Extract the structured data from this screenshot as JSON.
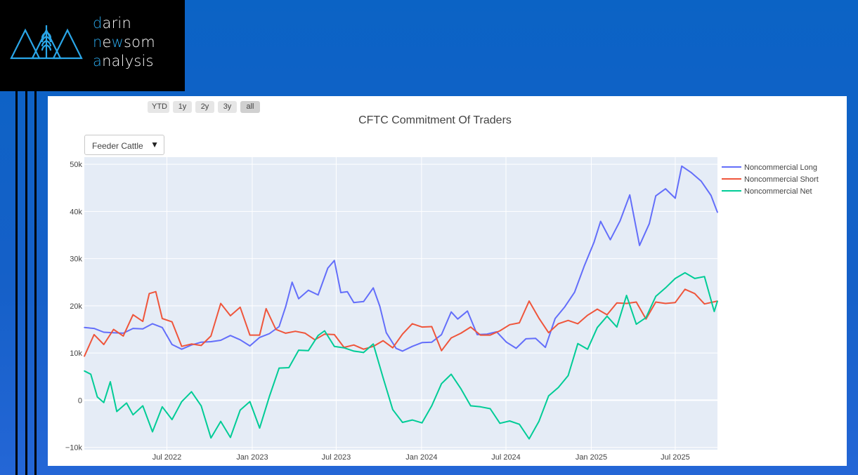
{
  "brand": {
    "line1_first": "d",
    "line1_rest": "arin",
    "line2_first": "n",
    "line2_mid": "e",
    "line2_acc": "w",
    "line2_rest": "som",
    "line3_first": "a",
    "line3_rest": "nalysis",
    "logo_icon": "mountain-wheat-icon",
    "accent_color": "#2aa6e8"
  },
  "range_selector": {
    "buttons": [
      {
        "label": "YTD"
      },
      {
        "label": "1y"
      },
      {
        "label": "2y"
      },
      {
        "label": "3y"
      },
      {
        "label": "all"
      }
    ],
    "active": "all"
  },
  "dropdown": {
    "selected": "Feeder Cattle",
    "arrow_icon": "triangle-down-icon"
  },
  "chart_data": {
    "type": "line",
    "title": "CFTC Commitment Of Traders",
    "xlabel": "",
    "ylabel": "",
    "x_start": "2022-01-04",
    "x_end": "2025-09-30",
    "xlim": [
      "2022-01-04",
      "2025-09-30"
    ],
    "ylim": [
      -10500,
      51500
    ],
    "x_ticks": [
      {
        "date": "2022-07-01",
        "label": "Jul 2022"
      },
      {
        "date": "2023-01-01",
        "label": "Jan 2023"
      },
      {
        "date": "2023-07-01",
        "label": "Jul 2023"
      },
      {
        "date": "2024-01-01",
        "label": "Jan 2024"
      },
      {
        "date": "2024-07-01",
        "label": "Jul 2024"
      },
      {
        "date": "2025-01-01",
        "label": "Jan 2025"
      },
      {
        "date": "2025-07-01",
        "label": "Jul 2025"
      }
    ],
    "y_ticks": [
      {
        "value": -10000,
        "label": "−10k"
      },
      {
        "value": 0,
        "label": "0"
      },
      {
        "value": 10000,
        "label": "10k"
      },
      {
        "value": 20000,
        "label": "20k"
      },
      {
        "value": 30000,
        "label": "30k"
      },
      {
        "value": 40000,
        "label": "40k"
      },
      {
        "value": 50000,
        "label": "50k"
      }
    ],
    "grid": true,
    "legend_position": "top-right",
    "series": [
      {
        "name": "Noncommercial Long",
        "color": "#636efa",
        "values": [
          [
            "2022-01-04",
            15400
          ],
          [
            "2022-01-25",
            15200
          ],
          [
            "2022-02-15",
            14400
          ],
          [
            "2022-03-08",
            14300
          ],
          [
            "2022-03-29",
            14200
          ],
          [
            "2022-04-19",
            15200
          ],
          [
            "2022-05-10",
            15100
          ],
          [
            "2022-05-31",
            16200
          ],
          [
            "2022-06-21",
            15400
          ],
          [
            "2022-07-12",
            11800
          ],
          [
            "2022-08-02",
            10800
          ],
          [
            "2022-08-23",
            11700
          ],
          [
            "2022-09-13",
            12300
          ],
          [
            "2022-10-04",
            12400
          ],
          [
            "2022-10-25",
            12700
          ],
          [
            "2022-11-15",
            13700
          ],
          [
            "2022-12-06",
            12800
          ],
          [
            "2022-12-27",
            11500
          ],
          [
            "2023-01-17",
            13300
          ],
          [
            "2023-02-07",
            14100
          ],
          [
            "2023-02-28",
            15600
          ],
          [
            "2023-03-14",
            19800
          ],
          [
            "2023-03-28",
            25000
          ],
          [
            "2023-04-11",
            21500
          ],
          [
            "2023-05-02",
            23300
          ],
          [
            "2023-05-23",
            22300
          ],
          [
            "2023-06-13",
            28000
          ],
          [
            "2023-06-27",
            29600
          ],
          [
            "2023-07-11",
            22800
          ],
          [
            "2023-07-25",
            23000
          ],
          [
            "2023-08-08",
            20700
          ],
          [
            "2023-08-29",
            20900
          ],
          [
            "2023-09-19",
            23800
          ],
          [
            "2023-10-03",
            19900
          ],
          [
            "2023-10-17",
            14300
          ],
          [
            "2023-11-07",
            11000
          ],
          [
            "2023-11-21",
            10400
          ],
          [
            "2023-12-12",
            11400
          ],
          [
            "2024-01-02",
            12200
          ],
          [
            "2024-01-23",
            12300
          ],
          [
            "2024-02-13",
            13900
          ],
          [
            "2024-03-05",
            18700
          ],
          [
            "2024-03-19",
            17200
          ],
          [
            "2024-04-09",
            18900
          ],
          [
            "2024-04-30",
            13900
          ],
          [
            "2024-05-21",
            14000
          ],
          [
            "2024-06-11",
            14500
          ],
          [
            "2024-07-02",
            12300
          ],
          [
            "2024-07-23",
            11000
          ],
          [
            "2024-08-13",
            13000
          ],
          [
            "2024-09-03",
            13100
          ],
          [
            "2024-09-24",
            11200
          ],
          [
            "2024-10-15",
            17300
          ],
          [
            "2024-11-05",
            19800
          ],
          [
            "2024-11-26",
            22900
          ],
          [
            "2024-12-17",
            28500
          ],
          [
            "2025-01-07",
            33500
          ],
          [
            "2025-01-21",
            37900
          ],
          [
            "2025-02-11",
            34000
          ],
          [
            "2025-03-04",
            38000
          ],
          [
            "2025-03-25",
            43500
          ],
          [
            "2025-04-15",
            32800
          ],
          [
            "2025-05-06",
            37400
          ],
          [
            "2025-05-20",
            43300
          ],
          [
            "2025-06-10",
            44800
          ],
          [
            "2025-07-01",
            42800
          ],
          [
            "2025-07-15",
            49600
          ],
          [
            "2025-08-05",
            48200
          ],
          [
            "2025-08-26",
            46400
          ],
          [
            "2025-09-16",
            43400
          ],
          [
            "2025-09-30",
            39800
          ]
        ]
      },
      {
        "name": "Noncommercial Short",
        "color": "#ef553b",
        "values": [
          [
            "2022-01-04",
            9300
          ],
          [
            "2022-01-25",
            13900
          ],
          [
            "2022-02-15",
            11800
          ],
          [
            "2022-03-08",
            15000
          ],
          [
            "2022-03-29",
            13600
          ],
          [
            "2022-04-19",
            18100
          ],
          [
            "2022-05-10",
            16700
          ],
          [
            "2022-05-24",
            22600
          ],
          [
            "2022-06-07",
            23000
          ],
          [
            "2022-06-21",
            17300
          ],
          [
            "2022-07-12",
            16600
          ],
          [
            "2022-08-02",
            11400
          ],
          [
            "2022-08-23",
            11900
          ],
          [
            "2022-09-13",
            11600
          ],
          [
            "2022-10-04",
            13600
          ],
          [
            "2022-10-25",
            20500
          ],
          [
            "2022-11-15",
            17900
          ],
          [
            "2022-12-06",
            19700
          ],
          [
            "2022-12-27",
            13800
          ],
          [
            "2023-01-17",
            13800
          ],
          [
            "2023-01-31",
            19400
          ],
          [
            "2023-02-21",
            15000
          ],
          [
            "2023-03-14",
            14200
          ],
          [
            "2023-04-04",
            14600
          ],
          [
            "2023-04-25",
            14200
          ],
          [
            "2023-05-16",
            12800
          ],
          [
            "2023-06-06",
            14000
          ],
          [
            "2023-06-27",
            13900
          ],
          [
            "2023-07-18",
            11200
          ],
          [
            "2023-08-08",
            11700
          ],
          [
            "2023-08-29",
            10800
          ],
          [
            "2023-09-19",
            11400
          ],
          [
            "2023-10-10",
            12600
          ],
          [
            "2023-10-31",
            11100
          ],
          [
            "2023-11-21",
            14000
          ],
          [
            "2023-12-12",
            16200
          ],
          [
            "2024-01-02",
            15500
          ],
          [
            "2024-01-23",
            15600
          ],
          [
            "2024-02-13",
            10500
          ],
          [
            "2024-03-05",
            13200
          ],
          [
            "2024-03-26",
            14200
          ],
          [
            "2024-04-16",
            15500
          ],
          [
            "2024-05-07",
            13800
          ],
          [
            "2024-05-28",
            13800
          ],
          [
            "2024-06-18",
            14700
          ],
          [
            "2024-07-09",
            16000
          ],
          [
            "2024-07-30",
            16400
          ],
          [
            "2024-08-20",
            21000
          ],
          [
            "2024-09-10",
            17400
          ],
          [
            "2024-10-01",
            14300
          ],
          [
            "2024-10-22",
            16200
          ],
          [
            "2024-11-12",
            16900
          ],
          [
            "2024-12-03",
            16200
          ],
          [
            "2024-12-24",
            18000
          ],
          [
            "2025-01-14",
            19300
          ],
          [
            "2025-02-04",
            18100
          ],
          [
            "2025-02-25",
            20600
          ],
          [
            "2025-03-18",
            20500
          ],
          [
            "2025-04-08",
            20800
          ],
          [
            "2025-04-29",
            17200
          ],
          [
            "2025-05-20",
            20800
          ],
          [
            "2025-06-10",
            20500
          ],
          [
            "2025-07-01",
            20700
          ],
          [
            "2025-07-22",
            23500
          ],
          [
            "2025-08-12",
            22600
          ],
          [
            "2025-09-02",
            20400
          ],
          [
            "2025-09-30",
            21000
          ]
        ]
      },
      {
        "name": "Noncommercial Net",
        "color": "#00cc96",
        "values": [
          [
            "2022-01-04",
            6200
          ],
          [
            "2022-01-18",
            5500
          ],
          [
            "2022-02-01",
            700
          ],
          [
            "2022-02-15",
            -500
          ],
          [
            "2022-03-01",
            3900
          ],
          [
            "2022-03-15",
            -2400
          ],
          [
            "2022-04-05",
            -600
          ],
          [
            "2022-04-19",
            -3100
          ],
          [
            "2022-05-10",
            -1200
          ],
          [
            "2022-05-31",
            -6700
          ],
          [
            "2022-06-21",
            -1400
          ],
          [
            "2022-07-12",
            -4100
          ],
          [
            "2022-08-02",
            -300
          ],
          [
            "2022-08-23",
            1800
          ],
          [
            "2022-09-13",
            -1200
          ],
          [
            "2022-10-04",
            -8000
          ],
          [
            "2022-10-25",
            -4500
          ],
          [
            "2022-11-15",
            -7900
          ],
          [
            "2022-12-06",
            -2100
          ],
          [
            "2022-12-27",
            -300
          ],
          [
            "2023-01-17",
            -5900
          ],
          [
            "2023-02-07",
            800
          ],
          [
            "2023-02-28",
            6800
          ],
          [
            "2023-03-21",
            6900
          ],
          [
            "2023-04-11",
            10600
          ],
          [
            "2023-05-02",
            10500
          ],
          [
            "2023-05-23",
            13700
          ],
          [
            "2023-06-06",
            14700
          ],
          [
            "2023-06-27",
            11400
          ],
          [
            "2023-07-18",
            11100
          ],
          [
            "2023-08-08",
            10400
          ],
          [
            "2023-08-29",
            10100
          ],
          [
            "2023-09-19",
            11900
          ],
          [
            "2023-10-10",
            4800
          ],
          [
            "2023-10-31",
            -2000
          ],
          [
            "2023-11-21",
            -4700
          ],
          [
            "2023-12-12",
            -4200
          ],
          [
            "2024-01-02",
            -4800
          ],
          [
            "2024-01-23",
            -1200
          ],
          [
            "2024-02-13",
            3500
          ],
          [
            "2024-03-05",
            5500
          ],
          [
            "2024-03-26",
            2400
          ],
          [
            "2024-04-16",
            -1200
          ],
          [
            "2024-05-07",
            -1400
          ],
          [
            "2024-05-28",
            -1800
          ],
          [
            "2024-06-18",
            -4900
          ],
          [
            "2024-07-09",
            -4400
          ],
          [
            "2024-07-30",
            -5100
          ],
          [
            "2024-08-20",
            -8200
          ],
          [
            "2024-09-10",
            -4500
          ],
          [
            "2024-10-01",
            900
          ],
          [
            "2024-10-22",
            2700
          ],
          [
            "2024-11-12",
            5200
          ],
          [
            "2024-12-03",
            12000
          ],
          [
            "2024-12-24",
            10800
          ],
          [
            "2025-01-14",
            15400
          ],
          [
            "2025-02-04",
            17800
          ],
          [
            "2025-02-25",
            15500
          ],
          [
            "2025-03-18",
            22200
          ],
          [
            "2025-04-08",
            16100
          ],
          [
            "2025-04-29",
            17500
          ],
          [
            "2025-05-20",
            22000
          ],
          [
            "2025-06-10",
            23800
          ],
          [
            "2025-07-01",
            25800
          ],
          [
            "2025-07-22",
            27000
          ],
          [
            "2025-08-12",
            25800
          ],
          [
            "2025-09-02",
            26200
          ],
          [
            "2025-09-23",
            18800
          ],
          [
            "2025-09-30",
            21000
          ]
        ]
      }
    ]
  }
}
